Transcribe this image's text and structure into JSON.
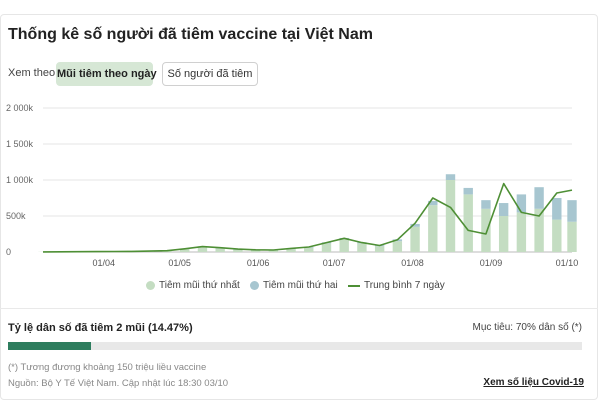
{
  "header": {
    "title": "Thống kê số người đã tiêm vaccine tại Việt Nam",
    "view_label": "Xem theo:",
    "tab_daily": "Mũi tiêm theo ngày",
    "tab_total": "Số người đã tiêm"
  },
  "colors": {
    "first_dose": "#c4ddc2",
    "second_dose": "#a7c6d0",
    "avg_line": "#4e8f35",
    "progress": "#2e7d5e"
  },
  "chart_data": {
    "type": "bar",
    "stacked": true,
    "title": "",
    "xlabel": "",
    "ylabel": "",
    "ylim": [
      0,
      2000000
    ],
    "yticks": [
      0,
      500000,
      1000000,
      1500000,
      2000000
    ],
    "ytick_labels": [
      "0",
      "500k",
      "1 000k",
      "1 500k",
      "2 000k"
    ],
    "grid": true,
    "legend_position": "bottom",
    "x_range": [
      "2021-03-08",
      "2021-10-03"
    ],
    "xtick_labels": [
      "01/04",
      "01/05",
      "01/06",
      "01/07",
      "01/08",
      "01/09",
      "01/10"
    ],
    "x": [
      "2021-03-08",
      "2021-03-15",
      "2021-03-22",
      "2021-03-29",
      "2021-04-05",
      "2021-04-12",
      "2021-04-19",
      "2021-04-26",
      "2021-05-03",
      "2021-05-10",
      "2021-05-17",
      "2021-05-24",
      "2021-05-31",
      "2021-06-07",
      "2021-06-14",
      "2021-06-21",
      "2021-06-28",
      "2021-07-05",
      "2021-07-12",
      "2021-07-19",
      "2021-07-26",
      "2021-08-02",
      "2021-08-09",
      "2021-08-16",
      "2021-08-23",
      "2021-08-30",
      "2021-09-06",
      "2021-09-13",
      "2021-09-20",
      "2021-09-27",
      "2021-10-03"
    ],
    "series": [
      {
        "name": "Tiêm mũi thứ nhất",
        "type": "bar",
        "values": [
          2000,
          3000,
          4000,
          5000,
          6000,
          8000,
          10000,
          15000,
          40000,
          70000,
          50000,
          30000,
          20000,
          20000,
          40000,
          60000,
          120000,
          180000,
          120000,
          80000,
          150000,
          350000,
          650000,
          1000000,
          800000,
          600000,
          500000,
          550000,
          600000,
          450000,
          420000
        ]
      },
      {
        "name": "Tiêm mũi thứ hai",
        "type": "bar",
        "values": [
          0,
          0,
          0,
          0,
          0,
          1000,
          2000,
          3000,
          5000,
          8000,
          10000,
          10000,
          10000,
          8000,
          10000,
          12000,
          15000,
          15000,
          15000,
          15000,
          25000,
          40000,
          60000,
          80000,
          90000,
          120000,
          180000,
          250000,
          300000,
          300000,
          300000
        ]
      },
      {
        "name": "Trung bình 7 ngày",
        "type": "line",
        "values": [
          2000,
          3000,
          4000,
          5000,
          7000,
          9000,
          12000,
          18000,
          45000,
          75000,
          60000,
          40000,
          30000,
          28000,
          50000,
          70000,
          130000,
          190000,
          130000,
          90000,
          170000,
          400000,
          750000,
          620000,
          300000,
          250000,
          950000,
          550000,
          500000,
          820000,
          860000
        ]
      }
    ]
  },
  "progress": {
    "title": "Tỷ lệ dân số đã tiêm 2 mũi (14.47%)",
    "target": "Mục tiêu: 70% dân số (*)",
    "value_percent": 14.47,
    "target_percent": 70
  },
  "footer": {
    "note": "(*) Tương đương khoảng 150 triệu liều vaccine",
    "source": "Nguồn: Bộ Y Tế Việt Nam. Cập nhật lúc 18:30 03/10",
    "link": "Xem số liệu Covid-19"
  }
}
